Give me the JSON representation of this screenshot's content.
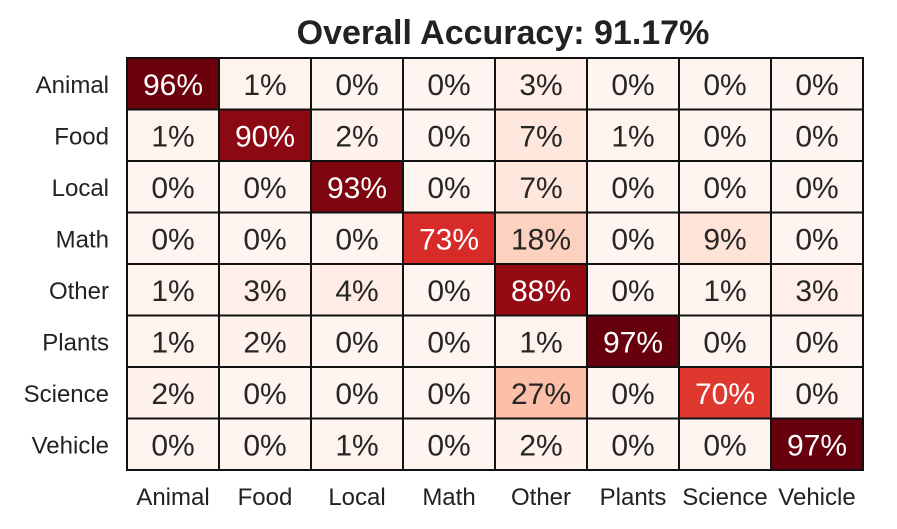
{
  "chart_data": {
    "type": "heatmap",
    "title": "Overall Accuracy: 91.17%",
    "rows": [
      "Animal",
      "Food",
      "Local",
      "Math",
      "Other",
      "Plants",
      "Science",
      "Vehicle"
    ],
    "columns": [
      "Animal",
      "Food",
      "Local",
      "Math",
      "Other",
      "Plants",
      "Science",
      "Vehicle"
    ],
    "values": [
      [
        96,
        1,
        0,
        0,
        3,
        0,
        0,
        0
      ],
      [
        1,
        90,
        2,
        0,
        7,
        1,
        0,
        0
      ],
      [
        0,
        0,
        93,
        0,
        7,
        0,
        0,
        0
      ],
      [
        0,
        0,
        0,
        73,
        18,
        0,
        9,
        0
      ],
      [
        1,
        3,
        4,
        0,
        88,
        0,
        1,
        3
      ],
      [
        1,
        2,
        0,
        0,
        1,
        97,
        0,
        0
      ],
      [
        2,
        0,
        0,
        0,
        27,
        0,
        70,
        0
      ],
      [
        0,
        0,
        1,
        0,
        2,
        0,
        0,
        97
      ]
    ],
    "value_format": "{v}%",
    "colormap": "Reds",
    "colors": {
      "low": "#fff5f0",
      "mid_low": "#fcbba1",
      "mid": "#fb6a4a",
      "mid_high": "#cb181d",
      "high": "#67000d"
    }
  }
}
